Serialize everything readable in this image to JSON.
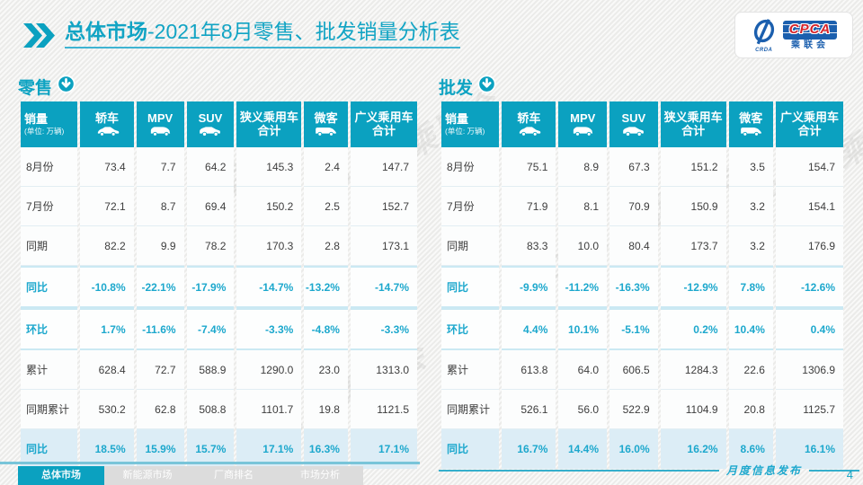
{
  "page": {
    "title_bold": "总体市场",
    "title_rest": "-2021年8月零售、批发销量分析表",
    "page_number": "4",
    "footer_note": "月度信息发布",
    "watermark": "CPCA 乘联会",
    "accent_color": "#0ba1c0"
  },
  "logo": {
    "cpca": "CPCA",
    "sub": "乘联会",
    "small": "CRDA"
  },
  "columns": [
    {
      "key": "sales-volume",
      "lines": [
        "销量"
      ],
      "sub": "(单位: 万辆)",
      "icon": null
    },
    {
      "key": "sedan",
      "lines": [
        "轿车"
      ],
      "icon": "sedan-icon"
    },
    {
      "key": "mpv",
      "lines": [
        "MPV"
      ],
      "icon": "mpv-icon"
    },
    {
      "key": "suv",
      "lines": [
        "SUV"
      ],
      "icon": "suv-icon"
    },
    {
      "key": "narrow-pv-total",
      "lines": [
        "狭义乘用车",
        "合计"
      ],
      "icon": null
    },
    {
      "key": "microvan",
      "lines": [
        "微客"
      ],
      "icon": "van-icon"
    },
    {
      "key": "broad-pv-total",
      "lines": [
        "广义乘用车",
        "合计"
      ],
      "icon": null
    }
  ],
  "tables": [
    {
      "id": "retail",
      "title": "零售",
      "rows": [
        {
          "label": "8月份",
          "type": "normal",
          "values": [
            "73.4",
            "7.7",
            "64.2",
            "145.3",
            "2.4",
            "147.7"
          ]
        },
        {
          "label": "7月份",
          "type": "normal",
          "values": [
            "72.1",
            "8.7",
            "69.4",
            "150.2",
            "2.5",
            "152.7"
          ]
        },
        {
          "label": "同期",
          "type": "normal",
          "values": [
            "82.2",
            "9.9",
            "78.2",
            "170.3",
            "2.8",
            "173.1"
          ]
        },
        {
          "label": "同比",
          "type": "rate",
          "values": [
            "-10.8%",
            "-22.1%",
            "-17.9%",
            "-14.7%",
            "-13.2%",
            "-14.7%"
          ]
        },
        {
          "label": "环比",
          "type": "rate",
          "values": [
            "1.7%",
            "-11.6%",
            "-7.4%",
            "-3.3%",
            "-4.8%",
            "-3.3%"
          ]
        },
        {
          "label": "累计",
          "type": "normal",
          "values": [
            "628.4",
            "72.7",
            "588.9",
            "1290.0",
            "23.0",
            "1313.0"
          ]
        },
        {
          "label": "同期累计",
          "type": "normal",
          "values": [
            "530.2",
            "62.8",
            "508.8",
            "1101.7",
            "19.8",
            "1121.5"
          ]
        },
        {
          "label": "同比",
          "type": "highlight",
          "values": [
            "18.5%",
            "15.9%",
            "15.7%",
            "17.1%",
            "16.3%",
            "17.1%"
          ]
        }
      ]
    },
    {
      "id": "wholesale",
      "title": "批发",
      "rows": [
        {
          "label": "8月份",
          "type": "normal",
          "values": [
            "75.1",
            "8.9",
            "67.3",
            "151.2",
            "3.5",
            "154.7"
          ]
        },
        {
          "label": "7月份",
          "type": "normal",
          "values": [
            "71.9",
            "8.1",
            "70.9",
            "150.9",
            "3.2",
            "154.1"
          ]
        },
        {
          "label": "同期",
          "type": "normal",
          "values": [
            "83.3",
            "10.0",
            "80.4",
            "173.7",
            "3.2",
            "176.9"
          ]
        },
        {
          "label": "同比",
          "type": "rate",
          "values": [
            "-9.9%",
            "-11.2%",
            "-16.3%",
            "-12.9%",
            "7.8%",
            "-12.6%"
          ]
        },
        {
          "label": "环比",
          "type": "rate",
          "values": [
            "4.4%",
            "10.1%",
            "-5.1%",
            "0.2%",
            "10.4%",
            "0.4%"
          ]
        },
        {
          "label": "累计",
          "type": "normal",
          "values": [
            "613.8",
            "64.0",
            "606.5",
            "1284.3",
            "22.6",
            "1306.9"
          ]
        },
        {
          "label": "同期累计",
          "type": "normal",
          "values": [
            "526.1",
            "56.0",
            "522.9",
            "1104.9",
            "20.8",
            "1125.7"
          ]
        },
        {
          "label": "同比",
          "type": "highlight",
          "values": [
            "16.7%",
            "14.4%",
            "16.0%",
            "16.2%",
            "8.6%",
            "16.1%"
          ]
        }
      ]
    }
  ],
  "footer": {
    "tabs": [
      {
        "label": "总体市场",
        "active": true
      },
      {
        "label": "新能源市场",
        "active": false
      },
      {
        "label": "厂商排名",
        "active": false
      },
      {
        "label": "市场分析",
        "active": false
      }
    ]
  }
}
